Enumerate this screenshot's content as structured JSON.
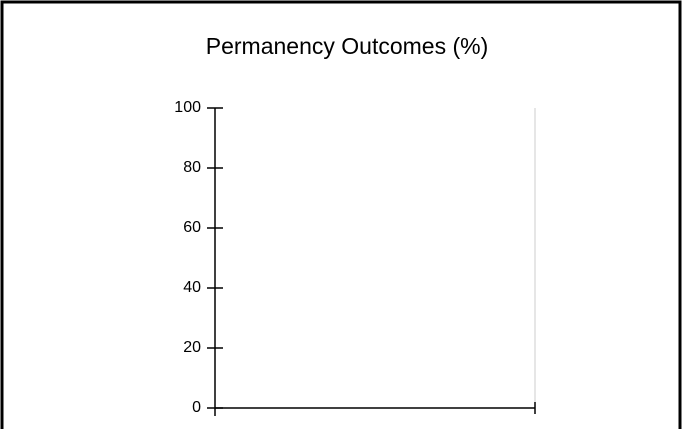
{
  "chart_data": {
    "type": "bar",
    "title": "Permanency Outcomes (%)",
    "ylim": [
      0,
      100
    ],
    "yticks": [
      0,
      20,
      40,
      60,
      80,
      100
    ]
  }
}
